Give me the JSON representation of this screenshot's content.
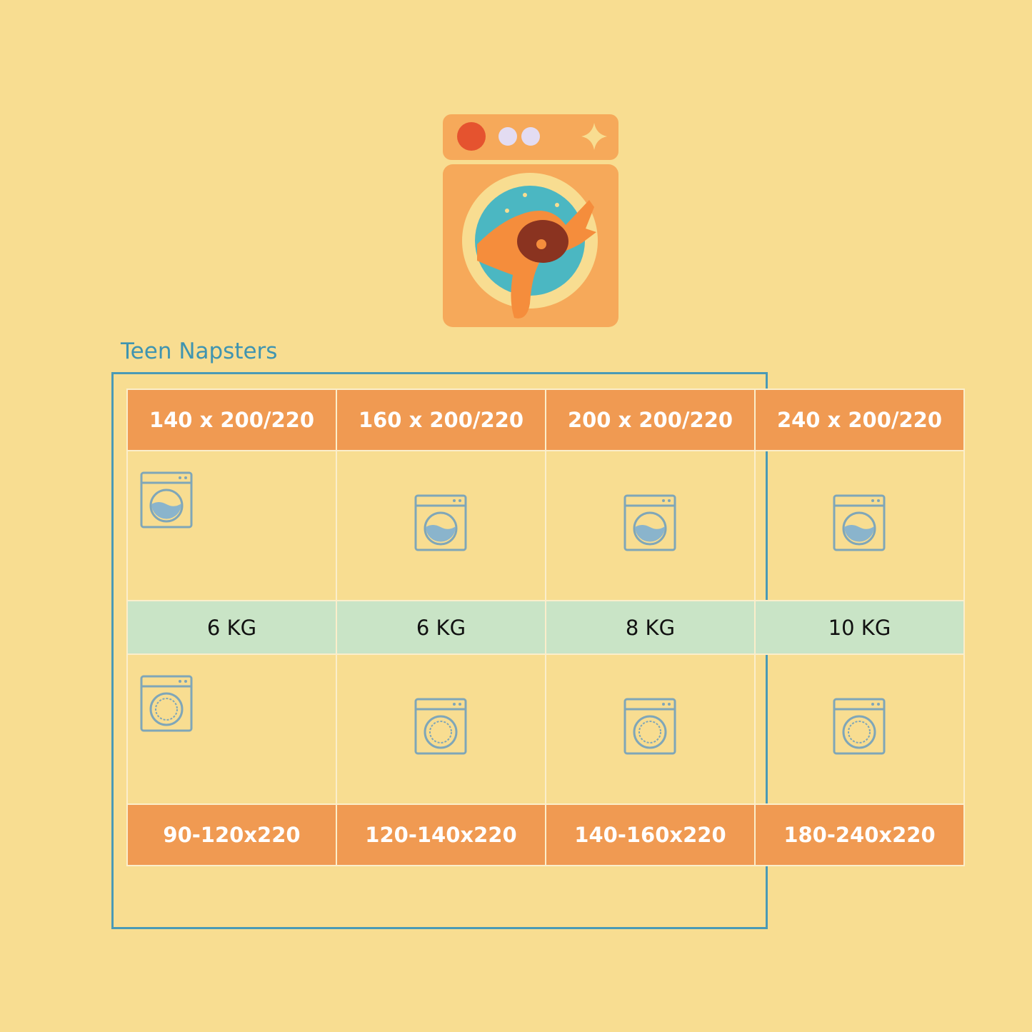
{
  "title": "Teen Napsters",
  "colors": {
    "background": "#f8dd91",
    "header": "#f09a52",
    "capacity_row": "#c9e4c6",
    "frame": "#4a9ab6",
    "icon": "#7fa6b8"
  },
  "table": {
    "headers": [
      "140 x 200/220",
      "160 x 200/220",
      "200 x 200/220",
      "240 x 200/220"
    ],
    "capacity": [
      "6 KG",
      "6 KG",
      "8 KG",
      "10 KG"
    ],
    "footers": [
      "90-120x220",
      "120-140x220",
      "140-160x220",
      "180-240x220"
    ],
    "row1_icon": "washing-machine-water-icon",
    "row2_icon": "washing-machine-drum-icon"
  }
}
